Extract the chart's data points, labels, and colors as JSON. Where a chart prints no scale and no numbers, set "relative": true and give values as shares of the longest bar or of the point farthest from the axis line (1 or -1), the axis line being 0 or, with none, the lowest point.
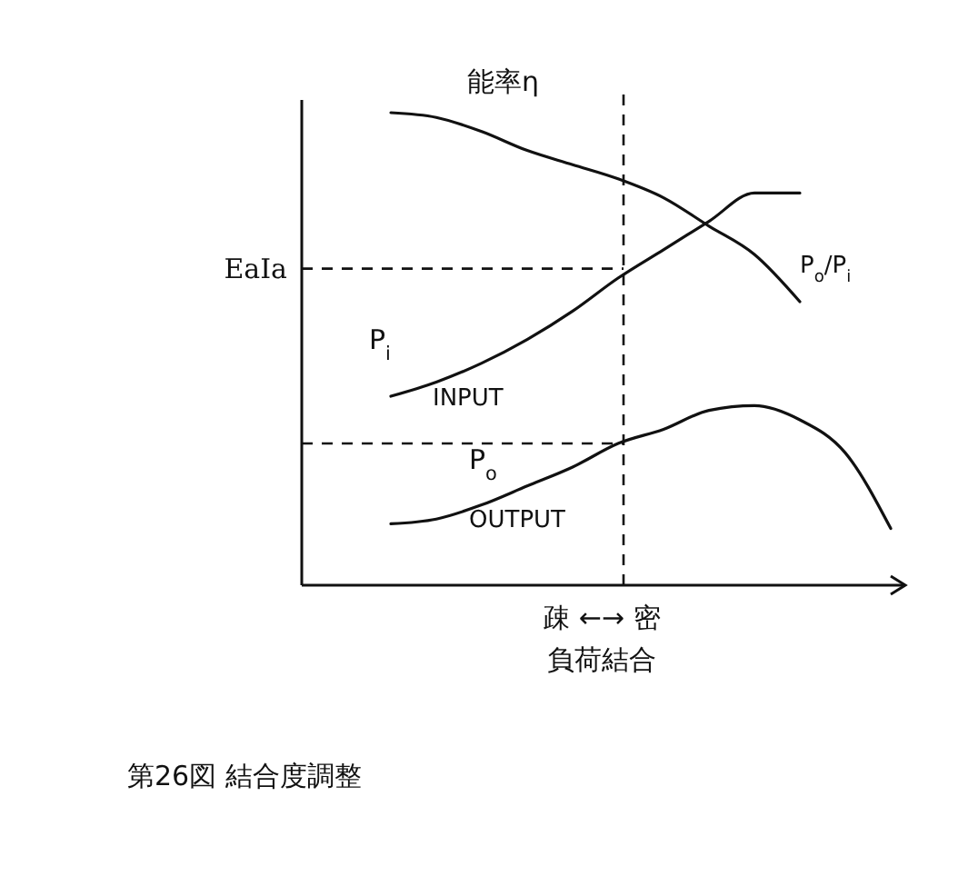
{
  "chart_data": {
    "type": "line",
    "relative": true,
    "xlabel": "負荷結合",
    "categories": [
      null,
      null,
      null,
      null,
      null,
      null,
      null,
      null,
      null,
      null,
      null,
      null,
      null
    ],
    "series": [
      {
        "name": "能率η",
        "color": "#111111",
        "values": [
          null,
          1.0,
          0.99,
          0.96,
          0.92,
          0.89,
          0.86,
          0.82,
          0.76,
          0.7,
          0.6,
          null,
          null
        ]
      },
      {
        "name": "P$_{i}$",
        "color": "#111111",
        "values": [
          null,
          0.4,
          0.43,
          0.47,
          0.52,
          0.58,
          0.65,
          0.71,
          0.77,
          0.83,
          0.83,
          null,
          null
        ]
      },
      {
        "name": "P$_{o}$",
        "color": "#111111",
        "values": [
          null,
          0.13,
          0.14,
          0.17,
          0.21,
          0.25,
          0.3,
          0.33,
          0.37,
          0.38,
          0.35,
          0.28,
          0.12
        ]
      }
    ],
    "ref_lines": [
      {
        "axis": "y",
        "value": 0.67,
        "label": "EaIa",
        "line_style": "dashed"
      },
      {
        "axis": "y",
        "value": 0.3,
        "line_style": "dashed"
      }
    ],
    "annotations": [
      "P$_{o}$/P$_{i}$",
      "INPUT",
      "OUTPUT",
      "疎 ←→ 密",
      "第26図 結合度調整"
    ],
    "marker": "none",
    "line_style": "solid",
    "legend": false,
    "grid": false
  }
}
